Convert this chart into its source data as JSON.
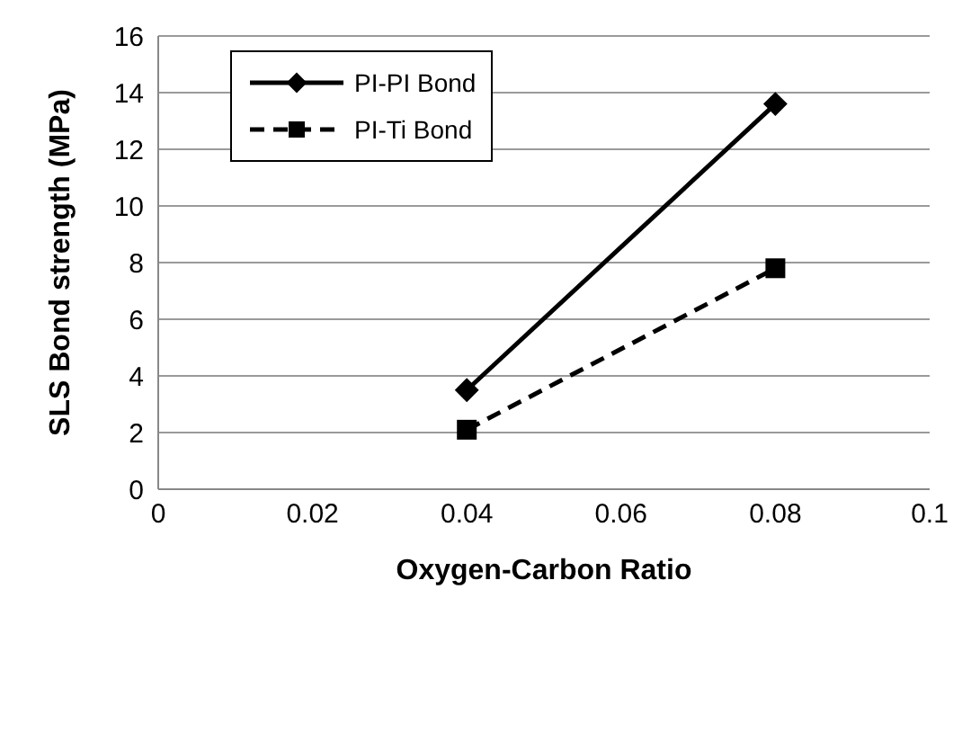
{
  "chart_data": {
    "type": "line",
    "xlabel": "Oxygen-Carbon Ratio",
    "ylabel": "SLS Bond strength (MPa)",
    "x": [
      0.04,
      0.08
    ],
    "series": [
      {
        "name": "PI-PI Bond",
        "color": "#000000",
        "values": [
          3.5,
          13.6
        ],
        "marker": "diamond",
        "line_style": "solid"
      },
      {
        "name": "PI-Ti Bond",
        "color": "#000000",
        "values": [
          2.1,
          7.8
        ],
        "marker": "square",
        "line_style": "dashed"
      }
    ],
    "xlim": [
      0,
      0.1
    ],
    "xticks": [
      0,
      0.02,
      0.04,
      0.06,
      0.08,
      0.1
    ],
    "ylim": [
      0,
      16
    ],
    "yticks": [
      0,
      2,
      4,
      6,
      8,
      10,
      12,
      14,
      16
    ],
    "grid": "y",
    "legend": "top left"
  }
}
